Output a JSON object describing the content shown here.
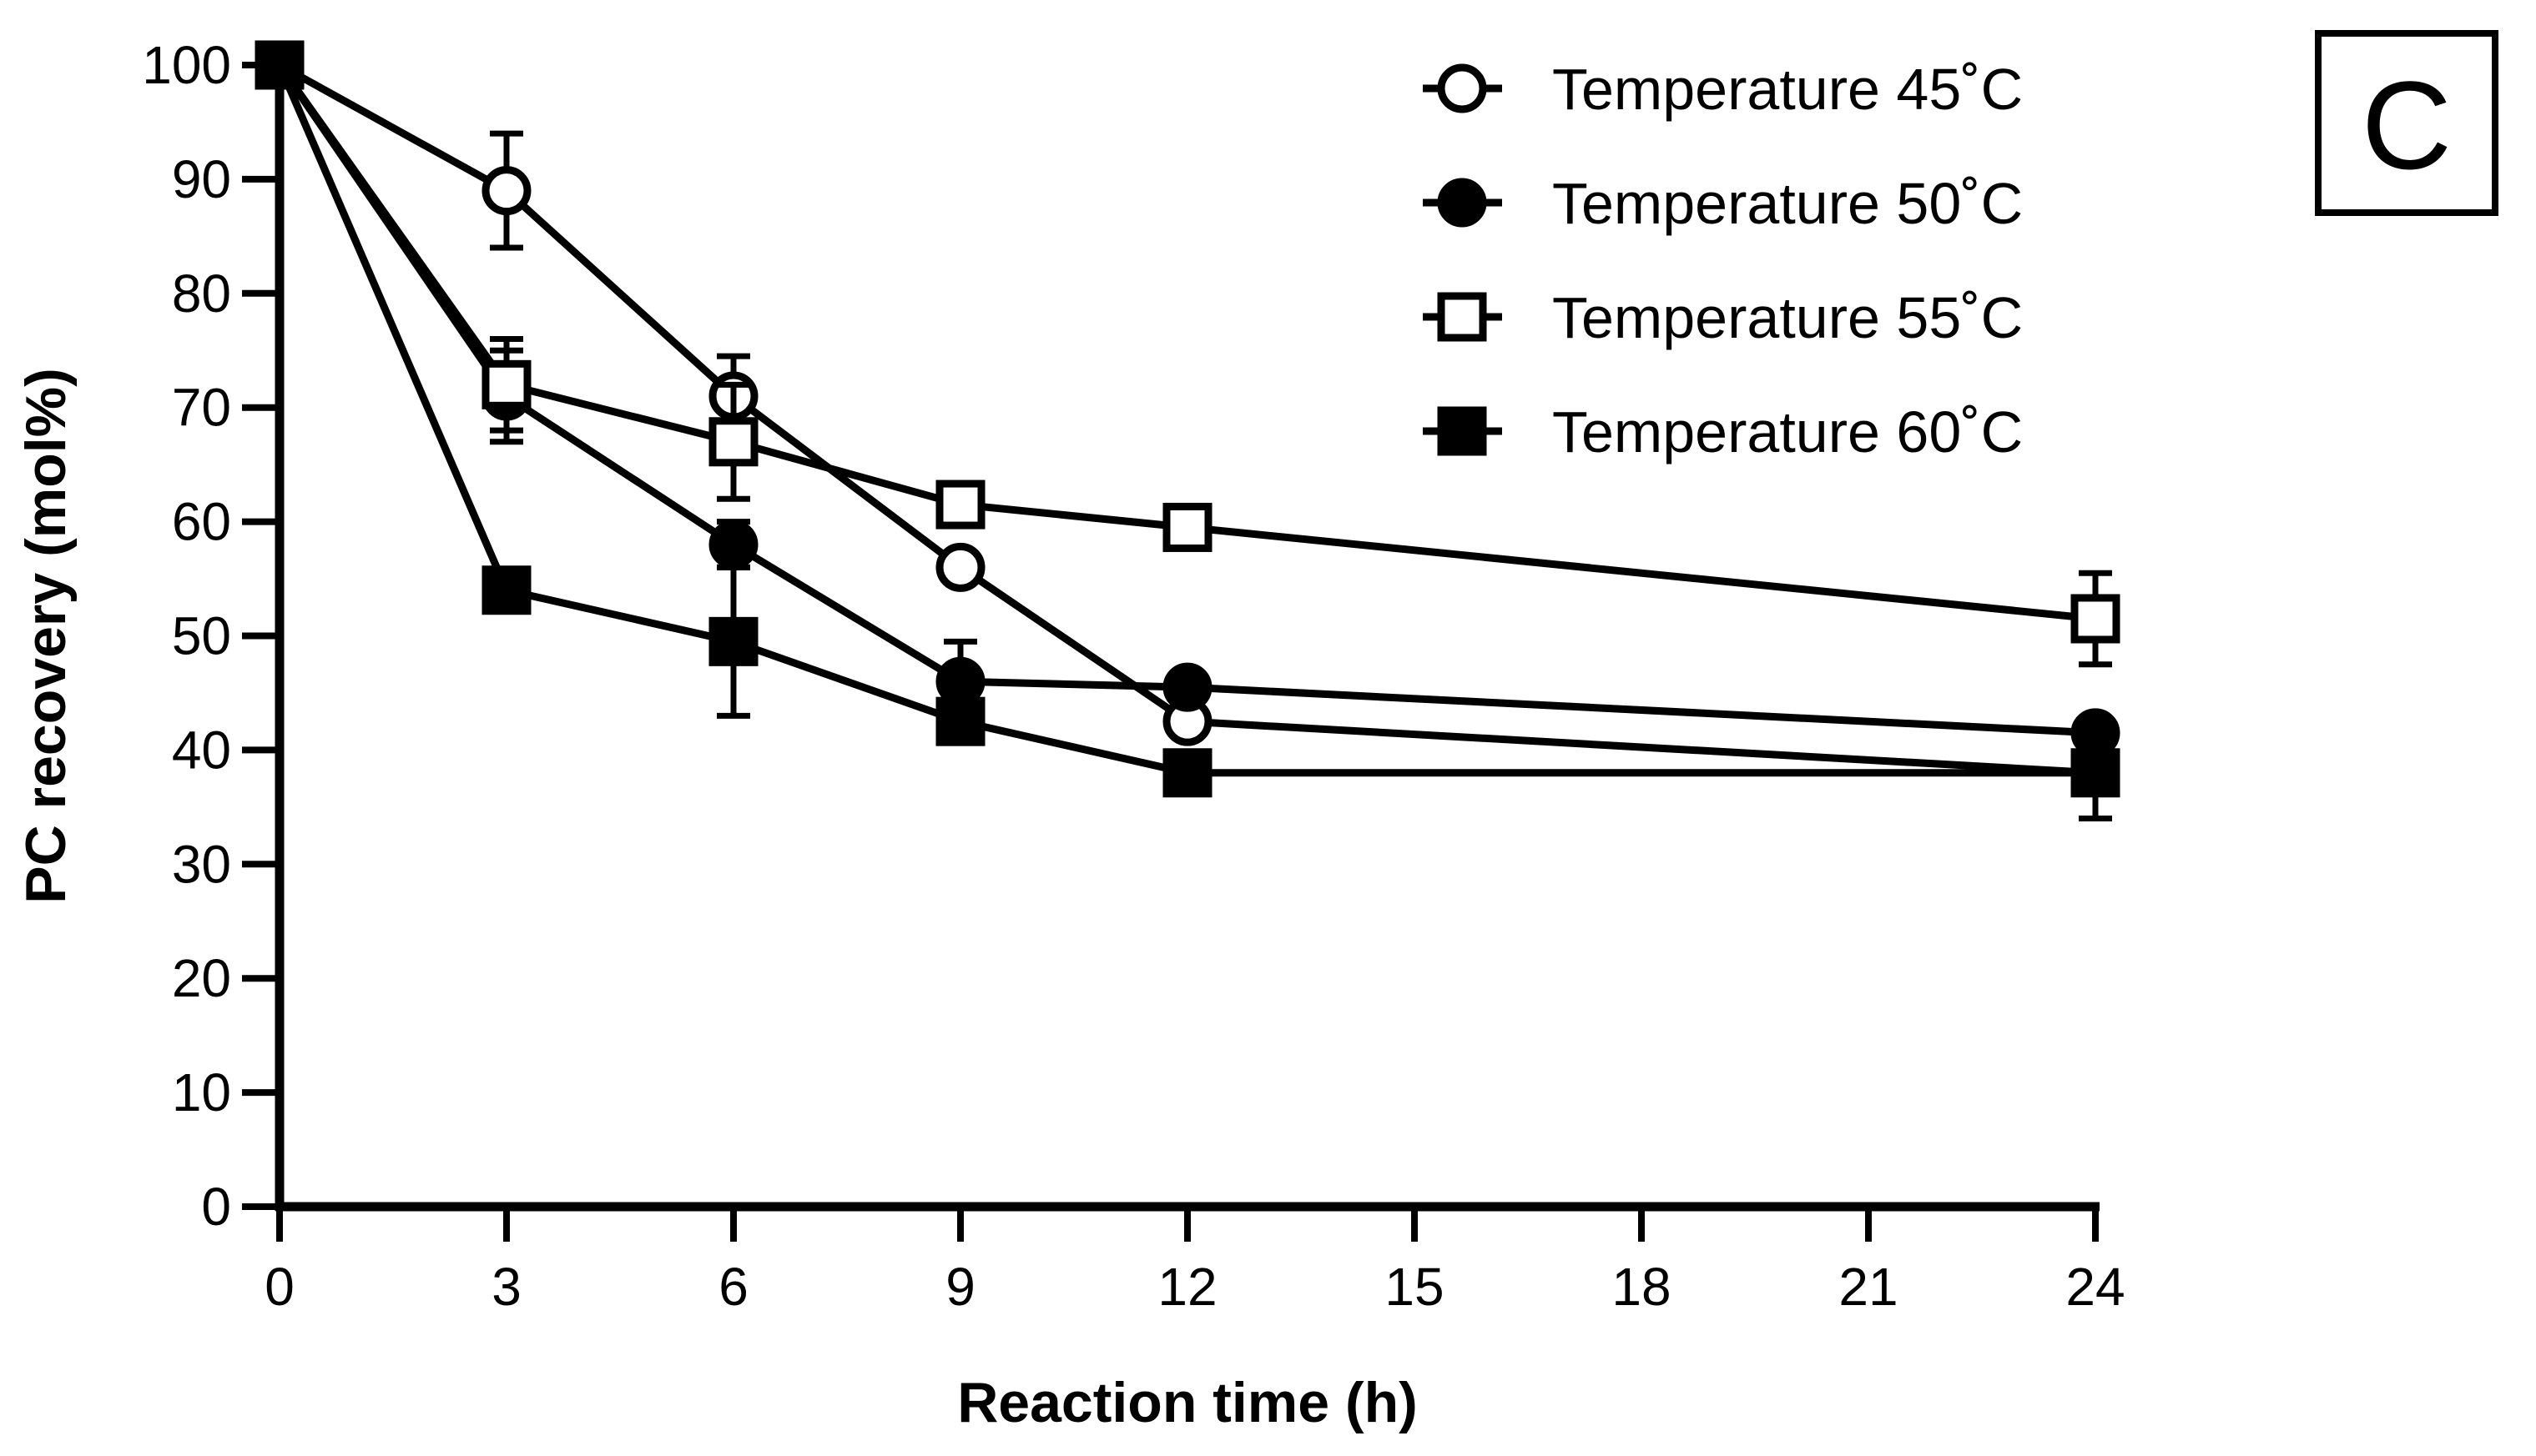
{
  "chart_data": {
    "type": "line",
    "title": "",
    "panel_label": "C",
    "xlabel": "Reaction time (h)",
    "ylabel": "PC recovery (mol%)",
    "x_tick_values": [
      0,
      3,
      6,
      9,
      12,
      15,
      18,
      21,
      24
    ],
    "x_tick_labels": [
      "0",
      "3",
      "6",
      "9",
      "12",
      "15",
      "18",
      "21",
      "24"
    ],
    "y_tick_values": [
      0,
      10,
      20,
      30,
      40,
      50,
      60,
      70,
      80,
      90,
      100
    ],
    "y_tick_labels": [
      "0",
      "10",
      "20",
      "30",
      "40",
      "50",
      "60",
      "70",
      "80",
      "90",
      "100"
    ],
    "xlim": [
      0,
      24
    ],
    "ylim": [
      0,
      100
    ],
    "x_axis_note": "categorical spacing: 0,3,6,9,12,15,18,21 evenly spaced; 24 placed next after 21",
    "legend_position": "top-right",
    "series": [
      {
        "name": "Temperature 45˚C",
        "marker": "circle",
        "filled": false,
        "x": [
          0,
          3,
          6,
          9,
          12,
          24
        ],
        "y": [
          100,
          89,
          71,
          56,
          42.5,
          38
        ],
        "err": [
          0,
          5,
          3.5,
          0,
          0,
          4
        ]
      },
      {
        "name": "Temperature 50˚C",
        "marker": "circle",
        "filled": true,
        "x": [
          0,
          3,
          6,
          9,
          12,
          24
        ],
        "y": [
          100,
          71,
          58,
          46,
          45.5,
          41.5
        ],
        "err": [
          0,
          4,
          2,
          3.5,
          0,
          0
        ]
      },
      {
        "name": "Temperature 55˚C",
        "marker": "square",
        "filled": false,
        "x": [
          0,
          3,
          6,
          9,
          12,
          24
        ],
        "y": [
          100,
          72,
          67,
          61.5,
          59.5,
          51.5
        ],
        "err": [
          0,
          4,
          5,
          0,
          0,
          4
        ]
      },
      {
        "name": "Temperature 60˚C",
        "marker": "square",
        "filled": true,
        "x": [
          0,
          3,
          6,
          9,
          12,
          24
        ],
        "y": [
          100,
          54,
          49.5,
          42.5,
          38,
          38
        ],
        "err": [
          0,
          0,
          6.5,
          0,
          0,
          0
        ]
      }
    ]
  }
}
